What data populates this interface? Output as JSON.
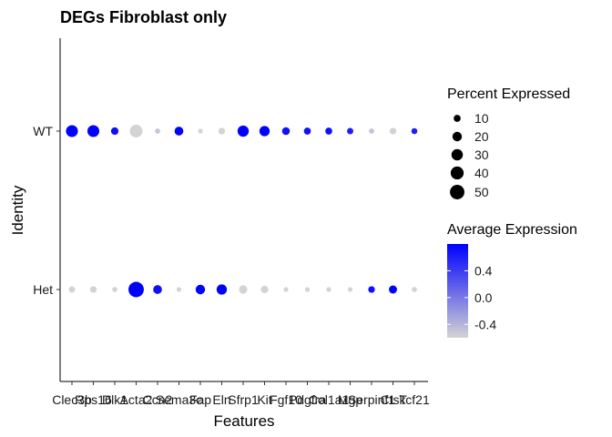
{
  "chart_data": {
    "type": "dotplot",
    "title": "DEGs Fibroblast only",
    "xlabel": "Features",
    "ylabel": "Identity",
    "features": [
      "Clec3b",
      "Rps16",
      "Dlk1",
      "Acta2",
      "Ccn2",
      "Sema3c",
      "Fap",
      "Eln",
      "Sfrp1",
      "Kit",
      "Fgf10",
      "Pdgfra",
      "Col1a1",
      "Mgp",
      "Serpinf1",
      "Ctsk",
      "Tcf21"
    ],
    "tick_labels": [
      "Clec3b",
      "Rps16",
      "Dlk1",
      "Acta2",
      "Ccn2",
      "Sema3c",
      "Fap",
      "Eln",
      "Sfrp1",
      "Kit",
      "Fgf10",
      "Pdgfra",
      "Col1a1",
      "Mgp",
      "Serpinf1",
      "Ctsk",
      "Tcf21"
    ],
    "tick_label_render": "ClecRps16Dlk1ActaCcn2Sema3cFapElnSfrp1KitFgf10Pdgfra Col1a1MgpSerpinf1CtskTcf21 2a",
    "identities": [
      "WT",
      "Het"
    ],
    "series": [
      {
        "identity": "WT",
        "percent_expressed": [
          33,
          33,
          12,
          38,
          5,
          17,
          4,
          9,
          29,
          24,
          13,
          10,
          10,
          8,
          5,
          9,
          7
        ],
        "average_expression": [
          0.8,
          0.8,
          0.7,
          -0.6,
          -0.5,
          0.8,
          -0.6,
          -0.6,
          0.8,
          0.8,
          0.7,
          0.7,
          0.7,
          0.6,
          -0.5,
          -0.6,
          0.6
        ]
      },
      {
        "identity": "Het",
        "percent_expressed": [
          8,
          9,
          5,
          57,
          17,
          4,
          20,
          24,
          15,
          12,
          4,
          4,
          4,
          4,
          9,
          14,
          5
        ],
        "average_expression": [
          -0.6,
          -0.6,
          -0.6,
          0.8,
          0.7,
          -0.6,
          0.8,
          0.8,
          -0.6,
          -0.6,
          -0.6,
          -0.6,
          -0.6,
          -0.6,
          0.7,
          0.8,
          -0.6
        ]
      }
    ],
    "legend_size": {
      "title": "Percent Expressed",
      "values": [
        10,
        20,
        30,
        40,
        50
      ],
      "labels": [
        "10",
        "20",
        "30",
        "40",
        "50"
      ]
    },
    "legend_color": {
      "title": "Average Expression",
      "range": [
        -0.6,
        0.8
      ],
      "ticks": [
        -0.4,
        0.0,
        0.4
      ],
      "tick_labels": [
        "-0.4",
        "0.0",
        "0.4"
      ],
      "low_color": "#d3d3d3",
      "high_color": "#0000ff"
    },
    "grid": false,
    "legend_position": "right"
  }
}
